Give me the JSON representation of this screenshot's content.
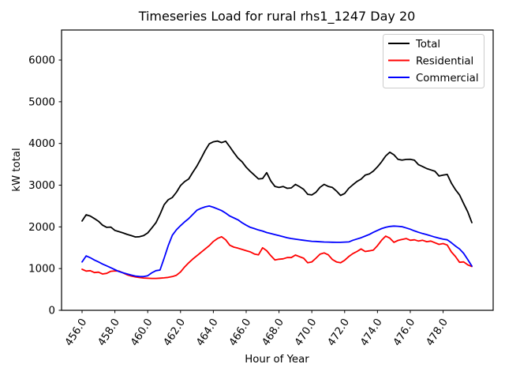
{
  "window": {
    "background": "#ffffff"
  },
  "chart_data": {
    "type": "line",
    "title": "Timeseries Load for rural rhs1_1247  Day 20",
    "xlabel": "Hour of Year",
    "ylabel": "kW total",
    "grid": false,
    "legend_position": "upper right",
    "xlim": [
      454.75,
      481.05
    ],
    "ylim": [
      0,
      6720
    ],
    "x_ticks": {
      "values": [
        456,
        458,
        460,
        462,
        464,
        466,
        468,
        470,
        472,
        474,
        476,
        478
      ],
      "labels": [
        "456.0",
        "458.0",
        "460.0",
        "462.0",
        "464.0",
        "466.0",
        "468.0",
        "470.0",
        "472.0",
        "474.0",
        "476.0",
        "478.0"
      ]
    },
    "y_ticks": {
      "values": [
        0,
        1000,
        2000,
        3000,
        4000,
        5000,
        6000
      ],
      "labels": [
        "0",
        "1000",
        "2000",
        "3000",
        "4000",
        "5000",
        "6000"
      ]
    },
    "x_start": 456.0,
    "x_step": 0.25,
    "series": [
      {
        "name": "Total",
        "color": "#000000",
        "values": [
          2140,
          2290,
          2260,
          2200,
          2135,
          2040,
          1990,
          1995,
          1915,
          1885,
          1855,
          1820,
          1790,
          1758,
          1765,
          1790,
          1855,
          1975,
          2100,
          2300,
          2530,
          2650,
          2705,
          2830,
          2990,
          3085,
          3150,
          3310,
          3460,
          3640,
          3830,
          3990,
          4040,
          4058,
          4020,
          4055,
          3920,
          3780,
          3650,
          3560,
          3430,
          3330,
          3240,
          3150,
          3160,
          3300,
          3100,
          2970,
          2945,
          2968,
          2925,
          2935,
          3020,
          2965,
          2900,
          2780,
          2765,
          2830,
          2950,
          3020,
          2970,
          2945,
          2860,
          2755,
          2800,
          2925,
          3010,
          3090,
          3145,
          3240,
          3270,
          3340,
          3440,
          3560,
          3700,
          3790,
          3730,
          3620,
          3600,
          3617,
          3620,
          3598,
          3490,
          3447,
          3397,
          3366,
          3334,
          3220,
          3240,
          3258,
          3050,
          2892,
          2766,
          2560,
          2360,
          2103
        ]
      },
      {
        "name": "Residential",
        "color": "#ff0000",
        "values": [
          985,
          940,
          950,
          905,
          915,
          870,
          885,
          935,
          945,
          940,
          895,
          850,
          822,
          800,
          785,
          775,
          768,
          765,
          765,
          770,
          778,
          790,
          808,
          840,
          920,
          1040,
          1140,
          1230,
          1310,
          1390,
          1470,
          1550,
          1650,
          1720,
          1765,
          1690,
          1560,
          1515,
          1490,
          1460,
          1430,
          1400,
          1350,
          1330,
          1500,
          1430,
          1310,
          1205,
          1225,
          1235,
          1265,
          1265,
          1325,
          1285,
          1250,
          1140,
          1160,
          1250,
          1345,
          1377,
          1330,
          1220,
          1160,
          1140,
          1200,
          1290,
          1360,
          1410,
          1470,
          1410,
          1425,
          1445,
          1550,
          1680,
          1780,
          1730,
          1630,
          1675,
          1700,
          1720,
          1680,
          1690,
          1660,
          1680,
          1645,
          1660,
          1620,
          1580,
          1600,
          1565,
          1400,
          1290,
          1150,
          1160,
          1090,
          1050
        ]
      },
      {
        "name": "Commercial",
        "color": "#0000ff",
        "values": [
          1160,
          1305,
          1260,
          1205,
          1160,
          1110,
          1065,
          1020,
          975,
          930,
          900,
          870,
          845,
          822,
          810,
          808,
          830,
          900,
          950,
          965,
          1250,
          1550,
          1800,
          1930,
          2030,
          2120,
          2200,
          2300,
          2400,
          2445,
          2480,
          2500,
          2470,
          2430,
          2390,
          2330,
          2260,
          2215,
          2170,
          2100,
          2040,
          1990,
          1960,
          1925,
          1900,
          1865,
          1840,
          1815,
          1790,
          1765,
          1740,
          1720,
          1705,
          1693,
          1680,
          1665,
          1655,
          1650,
          1643,
          1638,
          1635,
          1632,
          1630,
          1629,
          1635,
          1640,
          1680,
          1710,
          1740,
          1780,
          1820,
          1870,
          1915,
          1960,
          1990,
          2010,
          2020,
          2015,
          2005,
          1975,
          1945,
          1905,
          1870,
          1840,
          1815,
          1785,
          1755,
          1730,
          1705,
          1690,
          1620,
          1540,
          1470,
          1365,
          1215,
          1060
        ]
      }
    ],
    "legend_border_color": "#cccccc",
    "axis_color": "#000000"
  }
}
